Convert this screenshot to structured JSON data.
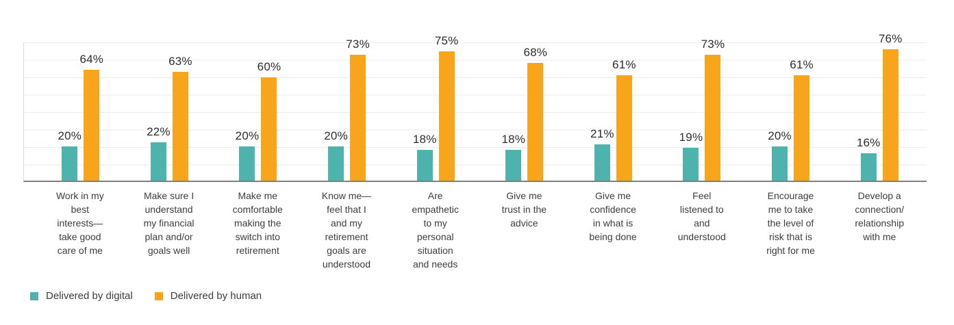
{
  "chart_data": {
    "type": "bar",
    "title": "",
    "xlabel": "",
    "ylabel": "",
    "ylim": [
      0,
      80
    ],
    "gridline_interval": 10,
    "grid": true,
    "data_labels": true,
    "value_suffix": "%",
    "legend_position": "bottom-left",
    "categories": [
      "Work in my\nbest\ninterests—\ntake good\ncare of me",
      "Make sure I\nunderstand\nmy financial\nplan and/or\ngoals well",
      "Make me\ncomfortable\nmaking the\nswitch into\nretirement",
      "Know me—\nfeel that I\nand my\nretirement\ngoals are\nunderstood",
      "Are\nempathetic\nto my\npersonal\nsituation\nand needs",
      "Give me\ntrust in the\nadvice",
      "Give me\nconfidence\nin what is\nbeing done",
      "Feel\nlistened to\nand\nunderstood",
      "Encourage\nme to take\nthe level of\nrisk that is\nright for me",
      "Develop a\nconnection/\nrelationship\nwith me"
    ],
    "series": [
      {
        "name": "Delivered by digital",
        "color": "#4FB3AD",
        "values": [
          20,
          22,
          20,
          20,
          18,
          18,
          21,
          19,
          20,
          16
        ]
      },
      {
        "name": "Delivered by human",
        "color": "#F9A51C",
        "values": [
          64,
          63,
          60,
          73,
          75,
          68,
          61,
          73,
          61,
          76
        ]
      }
    ]
  },
  "colors": {
    "background": "#ffffff",
    "gridline": "#ebebeb",
    "axis_line": "#7f7f7f",
    "plot_left_edge": "#dcdcdc",
    "label_text": "#2d2d2d",
    "category_text": "#3d3d3d"
  }
}
